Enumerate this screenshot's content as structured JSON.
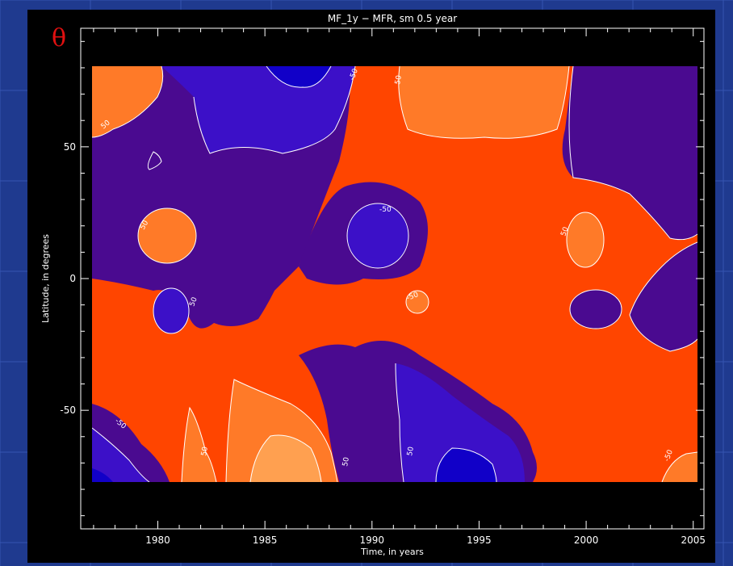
{
  "slide": {
    "background_color": "#1f3a8f",
    "symbol": "θ",
    "symbol_color": "#e01010"
  },
  "chart_data": {
    "type": "heatmap",
    "subtype": "filled contour (latitude-time diagram)",
    "title": "MF_1y − MFR, sm 0.5 year",
    "xlabel": "Time, in years",
    "ylabel": "Latitude, in degrees",
    "xlim": [
      1976.4,
      2005.0
    ],
    "ylim": [
      -75,
      75
    ],
    "axis_range_x": [
      1976.4,
      2005.5
    ],
    "axis_range_y": [
      -95,
      95
    ],
    "x_ticks": [
      1980,
      1985,
      1990,
      1995,
      2000,
      2005
    ],
    "y_ticks": [
      -50,
      0,
      50
    ],
    "contour_levels": [
      -50,
      0,
      50
    ],
    "contour_label_text": [
      "50",
      "-50",
      "50",
      "50",
      "-50",
      "50",
      "-50",
      "50",
      "-50",
      "50",
      "50"
    ],
    "level_colors": {
      "below_-50": "#1100c8",
      "-50_to_0": "#3c10c8",
      "0_to_-50_dark": "#4a0a90",
      "0_to_50": "#ff4500",
      "50_to_100": "#ff7a28",
      "above_100": "#ffa050"
    },
    "plot_background": "#000000"
  }
}
